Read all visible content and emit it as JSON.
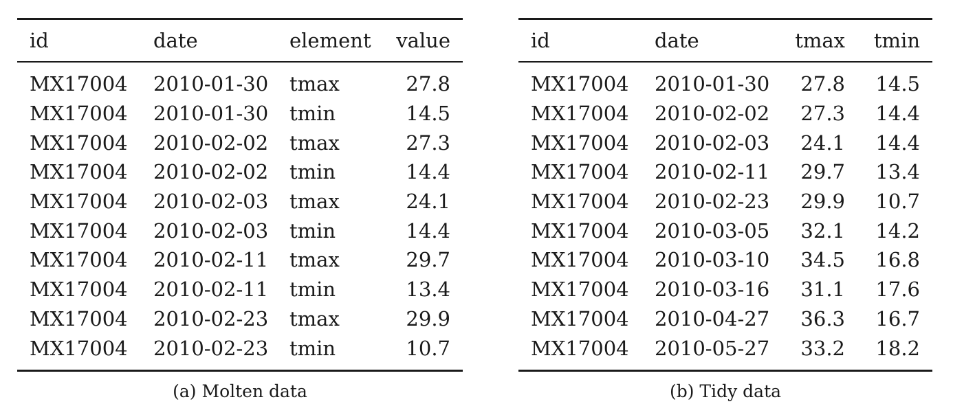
{
  "molten": {
    "caption": "(a) Molten data",
    "headers": [
      "id",
      "date",
      "element",
      "value"
    ],
    "rows": [
      [
        "MX17004",
        "2010-01-30",
        "tmax",
        "27.8"
      ],
      [
        "MX17004",
        "2010-01-30",
        "tmin",
        "14.5"
      ],
      [
        "MX17004",
        "2010-02-02",
        "tmax",
        "27.3"
      ],
      [
        "MX17004",
        "2010-02-02",
        "tmin",
        "14.4"
      ],
      [
        "MX17004",
        "2010-02-03",
        "tmax",
        "24.1"
      ],
      [
        "MX17004",
        "2010-02-03",
        "tmin",
        "14.4"
      ],
      [
        "MX17004",
        "2010-02-11",
        "tmax",
        "29.7"
      ],
      [
        "MX17004",
        "2010-02-11",
        "tmin",
        "13.4"
      ],
      [
        "MX17004",
        "2010-02-23",
        "tmax",
        "29.9"
      ],
      [
        "MX17004",
        "2010-02-23",
        "tmin",
        "10.7"
      ]
    ]
  },
  "tidy": {
    "caption": "(b) Tidy data",
    "headers": [
      "id",
      "date",
      "tmax",
      "tmin"
    ],
    "rows": [
      [
        "MX17004",
        "2010-01-30",
        "27.8",
        "14.5"
      ],
      [
        "MX17004",
        "2010-02-02",
        "27.3",
        "14.4"
      ],
      [
        "MX17004",
        "2010-02-03",
        "24.1",
        "14.4"
      ],
      [
        "MX17004",
        "2010-02-11",
        "29.7",
        "13.4"
      ],
      [
        "MX17004",
        "2010-02-23",
        "29.9",
        "10.7"
      ],
      [
        "MX17004",
        "2010-03-05",
        "32.1",
        "14.2"
      ],
      [
        "MX17004",
        "2010-03-10",
        "34.5",
        "16.8"
      ],
      [
        "MX17004",
        "2010-03-16",
        "31.1",
        "17.6"
      ],
      [
        "MX17004",
        "2010-04-27",
        "36.3",
        "16.7"
      ],
      [
        "MX17004",
        "2010-05-27",
        "33.2",
        "18.2"
      ]
    ]
  }
}
